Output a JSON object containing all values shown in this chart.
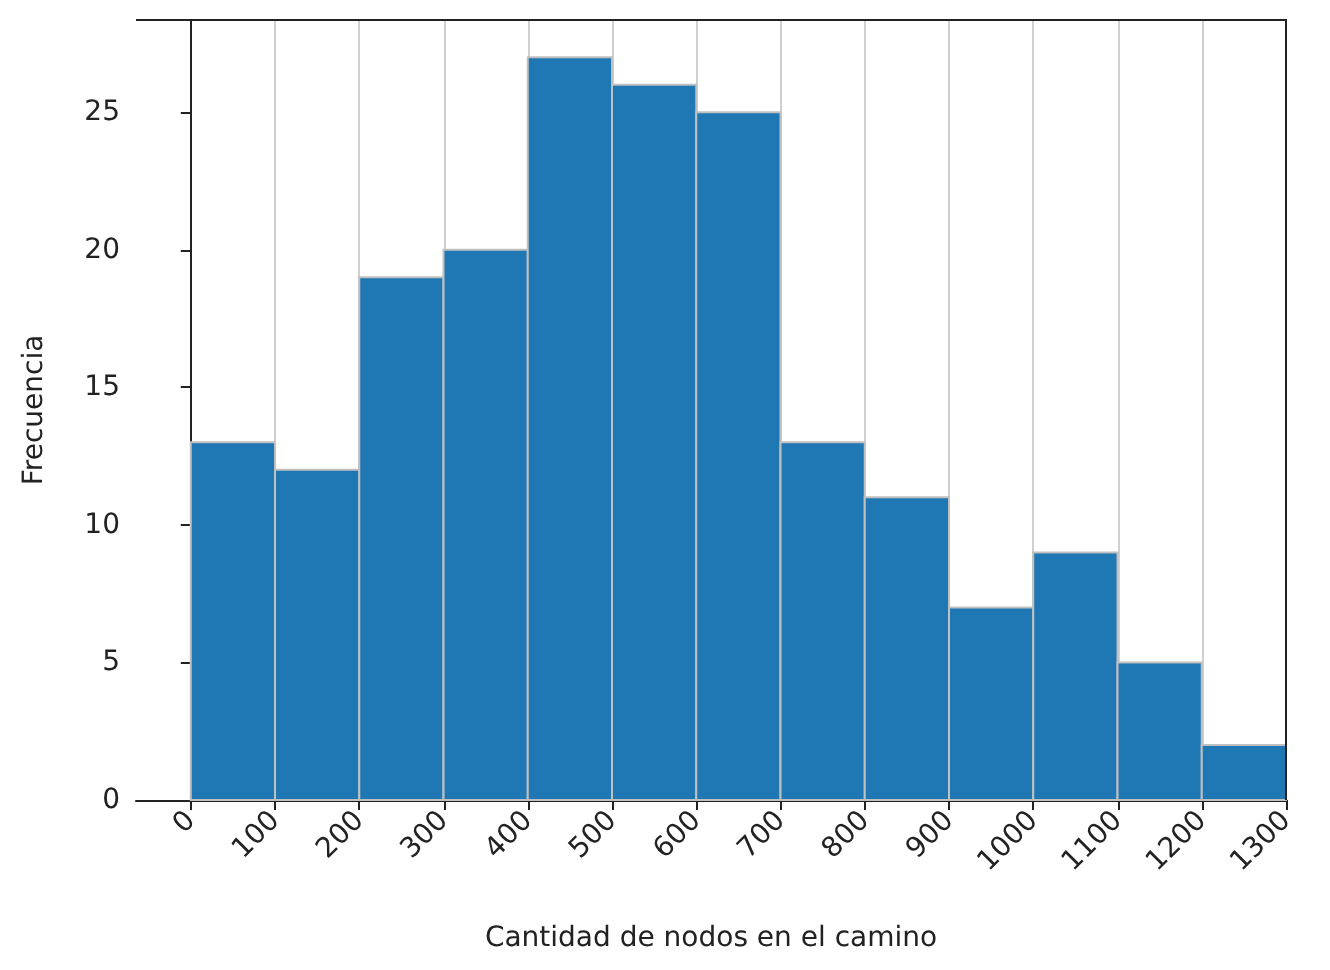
{
  "chart_data": {
    "type": "histogram",
    "xlabel": "Cantidad de nodos en el camino",
    "ylabel": "Frecuencia",
    "bins": [
      0,
      100,
      200,
      300,
      400,
      500,
      600,
      700,
      800,
      900,
      1000,
      1100,
      1200,
      1300
    ],
    "values": [
      13,
      12,
      19,
      20,
      27,
      26,
      25,
      13,
      11,
      7,
      9,
      5,
      2
    ],
    "color": "#1f77b4",
    "xlim": [
      -65,
      1300
    ],
    "xticks": [
      0,
      100,
      200,
      300,
      400,
      500,
      600,
      700,
      800,
      900,
      1000,
      1100,
      1200,
      1300
    ],
    "ylim": [
      0,
      28.35
    ],
    "yticks": [
      0,
      5,
      10,
      15,
      20,
      25
    ],
    "grid": "x"
  }
}
